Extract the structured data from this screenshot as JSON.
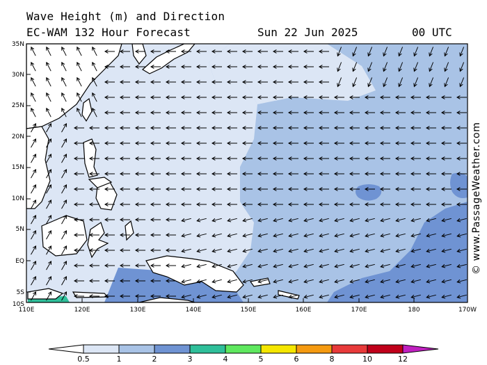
{
  "title_line1": "Wave Height (m) and Direction",
  "title_line2": "EC-WAM 132 Hour Forecast",
  "date": "Sun 22 Jun 2025",
  "time": "00 UTC",
  "credit": "© www.PassageWeather.com",
  "lat_labels": [
    "35N",
    "30N",
    "25N",
    "20N",
    "15N",
    "10N",
    "5N",
    "EQ",
    "5S",
    "10S"
  ],
  "lon_labels": [
    "110E",
    "120E",
    "130E",
    "140E",
    "150E",
    "160E",
    "170E",
    "180",
    "170W"
  ],
  "legend": {
    "ticks": [
      "0.5",
      "1",
      "2",
      "3",
      "4",
      "5",
      "6",
      "8",
      "10",
      "12"
    ],
    "colors": [
      "#ffffff",
      "#dce6f5",
      "#a9c3e6",
      "#6f93d3",
      "#2fbf9a",
      "#5fe85f",
      "#f5e600",
      "#f59a10",
      "#e83a3a",
      "#c0001a",
      "#c020c0"
    ]
  },
  "map_colors": {
    "land": "#ffffff",
    "low_waves": "#dce6f5",
    "mid_waves": "#a9c3e6",
    "high_waves": "#6f93d3",
    "peak_waves": "#2fbf9a",
    "coastline": "#000000"
  },
  "arrow_direction": "westward trade-wind swell across the basin, northwestward near the Philippines, northeastward in the South China Sea"
}
